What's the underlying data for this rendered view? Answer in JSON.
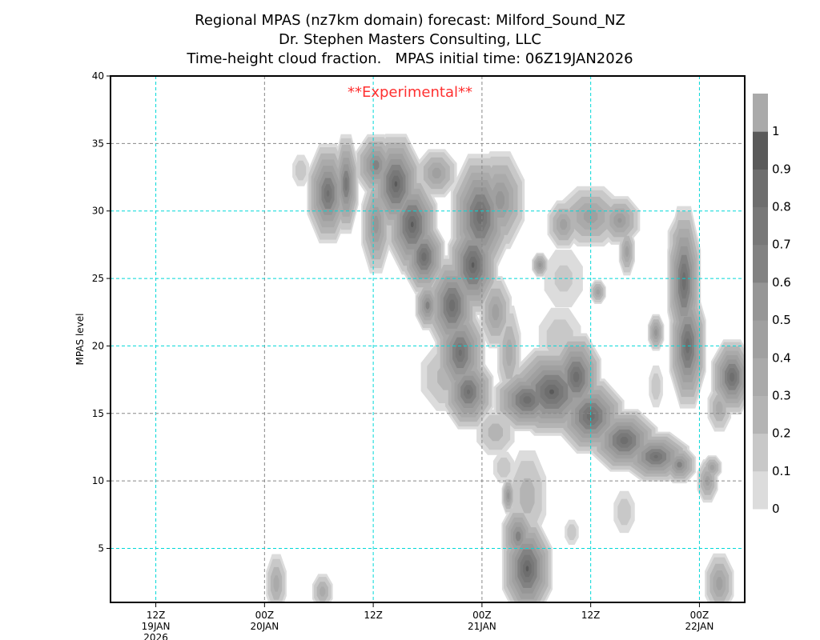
{
  "chart_data": {
    "type": "heatmap",
    "title_lines": [
      "Regional MPAS (nz7km domain) forecast: Milford_Sound_NZ",
      "Dr. Stephen Masters Consulting, LLC",
      "Time-height cloud fraction.   MPAS initial time: 06Z19JAN2026"
    ],
    "annotation": "**Experimental**",
    "ylabel": "MPAS level",
    "xlabel": "",
    "x_units": "forecast hours since 06Z19JAN2026",
    "xlim": [
      1,
      71
    ],
    "ylim": [
      1,
      40
    ],
    "y_ticks": [
      5,
      10,
      15,
      20,
      25,
      30,
      35,
      40
    ],
    "y_tick_labels": [
      "5",
      "10",
      "15",
      "20",
      "25",
      "30",
      "35",
      "40"
    ],
    "x_ticks": [
      {
        "hour": 6,
        "lines": [
          "12Z",
          "19JAN",
          "2026"
        ]
      },
      {
        "hour": 18,
        "lines": [
          "00Z",
          "20JAN"
        ]
      },
      {
        "hour": 30,
        "lines": [
          "12Z"
        ]
      },
      {
        "hour": 42,
        "lines": [
          "00Z",
          "21JAN"
        ]
      },
      {
        "hour": 54,
        "lines": [
          "12Z"
        ]
      },
      {
        "hour": 66,
        "lines": [
          "00Z",
          "22JAN"
        ]
      }
    ],
    "colorbar": {
      "levels": [
        0,
        0.1,
        0.2,
        0.3,
        0.4,
        0.5,
        0.6,
        0.7,
        0.8,
        0.9,
        1
      ],
      "labels": [
        "0",
        "0.1",
        "0.2",
        "0.3",
        "0.4",
        "0.5",
        "0.6",
        "0.7",
        "0.8",
        "0.9",
        "1"
      ],
      "colors": [
        "#dcdcdc",
        "#c8c8c8",
        "#b4b4b4",
        "#aaaaaa",
        "#a0a0a0",
        "#969696",
        "#828282",
        "#787878",
        "#6e6e6e",
        "#5a5a5a",
        "#aaaaaa"
      ]
    },
    "cloud_features_note": "approximate cloud-fraction maxima: hour, level, half-extent in hours, half-extent in levels, peak fraction",
    "cloud_features": [
      [
        22,
        33,
        1.2,
        1.5,
        0.2
      ],
      [
        25,
        31.3,
        2.5,
        4,
        0.85
      ],
      [
        27,
        32,
        1.5,
        4,
        0.8
      ],
      [
        30.3,
        33.4,
        2.5,
        2.5,
        0.7
      ],
      [
        32.5,
        32,
        3,
        4,
        0.95
      ],
      [
        34.3,
        29,
        3,
        4,
        0.95
      ],
      [
        35.6,
        26.6,
        2.5,
        3,
        0.9
      ],
      [
        30.3,
        29,
        1.8,
        4,
        0.6
      ],
      [
        37,
        32.8,
        2.5,
        2,
        0.5
      ],
      [
        41.8,
        29.6,
        3.5,
        5,
        0.9
      ],
      [
        44,
        30.8,
        3,
        4,
        0.6
      ],
      [
        41,
        26,
        3,
        4,
        0.95
      ],
      [
        38.7,
        23,
        3,
        4,
        0.9
      ],
      [
        39.6,
        19.5,
        3,
        4,
        0.85
      ],
      [
        40.5,
        16.6,
        3,
        3,
        0.85
      ],
      [
        36,
        23,
        1.5,
        2,
        0.7
      ],
      [
        43.5,
        22.5,
        2,
        3,
        0.5
      ],
      [
        45,
        19.5,
        1.5,
        4,
        0.4
      ],
      [
        49.7,
        16.6,
        5,
        3.5,
        0.95
      ],
      [
        47,
        16,
        4,
        2.5,
        0.9
      ],
      [
        52.4,
        17.7,
        3,
        3.5,
        0.9
      ],
      [
        54,
        14.8,
        4,
        3,
        0.9
      ],
      [
        57.7,
        13,
        4,
        2.5,
        0.9
      ],
      [
        61.2,
        11.8,
        4,
        2,
        0.85
      ],
      [
        63.8,
        11.2,
        2,
        1.5,
        0.7
      ],
      [
        54,
        29.6,
        4,
        2.5,
        0.5
      ],
      [
        51,
        29,
        2,
        2,
        0.5
      ],
      [
        57.2,
        29.3,
        2.5,
        2,
        0.55
      ],
      [
        58,
        27,
        1,
        2,
        0.5
      ],
      [
        64.3,
        24.8,
        2,
        6,
        0.9
      ],
      [
        64.7,
        20,
        2.2,
        5,
        0.9
      ],
      [
        63.8,
        27.8,
        1.5,
        2,
        0.4
      ],
      [
        69.6,
        17.7,
        2.5,
        3,
        0.9
      ],
      [
        68.2,
        15.4,
        1.5,
        2,
        0.4
      ],
      [
        47,
        3.5,
        3,
        4,
        0.95
      ],
      [
        46,
        5.9,
        2,
        2.5,
        0.7
      ],
      [
        19.3,
        2.4,
        1.3,
        2.5,
        0.4
      ],
      [
        24.4,
        1.8,
        1.3,
        1.5,
        0.4
      ],
      [
        68.2,
        2.4,
        1.8,
        2.5,
        0.5
      ],
      [
        44.4,
        11,
        1.5,
        1.5,
        0.2
      ],
      [
        44.9,
        8.9,
        0.8,
        1.5,
        0.6
      ],
      [
        51.9,
        6.2,
        1,
        1.2,
        0.2
      ],
      [
        57.7,
        7.7,
        1.5,
        2,
        0.2
      ],
      [
        61.2,
        21,
        1,
        1.5,
        0.6
      ],
      [
        66.9,
        10,
        1.3,
        1.8,
        0.5
      ],
      [
        67.4,
        11,
        1.2,
        1,
        0.5
      ],
      [
        38.2,
        17.7,
        3.5,
        3,
        0.3
      ],
      [
        43.5,
        13.6,
        2.5,
        2,
        0.3
      ],
      [
        47,
        8.9,
        2.5,
        4,
        0.3
      ],
      [
        48.4,
        26,
        1,
        1,
        0.6
      ],
      [
        54.8,
        24,
        1,
        1,
        0.5
      ],
      [
        51,
        25,
        3,
        3,
        0.15
      ],
      [
        61.2,
        17,
        1,
        2,
        0.2
      ],
      [
        50.6,
        20.5,
        3,
        3,
        0.2
      ]
    ]
  }
}
